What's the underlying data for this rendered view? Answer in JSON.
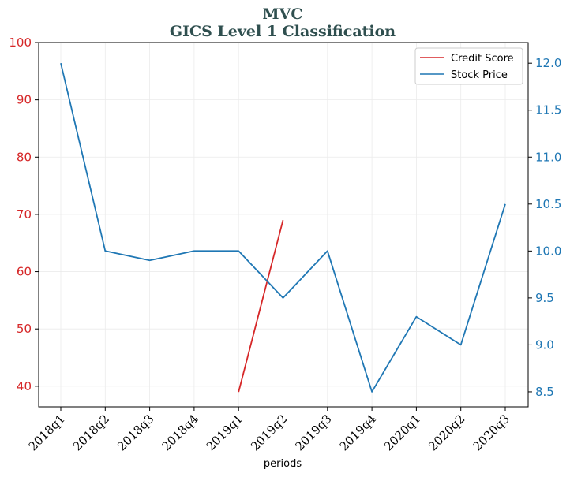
{
  "chart_data": {
    "type": "line",
    "title": "MVC",
    "subtitle": "GICS Level 1 Classification",
    "xlabel": "periods",
    "categories": [
      "2018q1",
      "2018q2",
      "2018q3",
      "2018q4",
      "2019q1",
      "2019q2",
      "2019q3",
      "2019q4",
      "2020q1",
      "2020q2",
      "2020q3"
    ],
    "y_left": {
      "ylim": [
        36.4,
        100
      ],
      "ticks": [
        40,
        50,
        60,
        70,
        80,
        90,
        100
      ],
      "color": "#d62728"
    },
    "y_right": {
      "ylim": [
        8.34,
        12.22
      ],
      "ticks": [
        "8.5",
        "9.0",
        "9.5",
        "10.0",
        "10.5",
        "11.0",
        "11.5",
        "12.0"
      ],
      "color": "#1f77b4"
    },
    "grid": true,
    "legend_position": "top-right",
    "series": [
      {
        "name": "Credit Score",
        "axis": "left",
        "color": "#d62728",
        "values": [
          null,
          null,
          null,
          null,
          39,
          69,
          null,
          null,
          null,
          null,
          null
        ]
      },
      {
        "name": "Stock Price",
        "axis": "right",
        "color": "#1f77b4",
        "values": [
          12.0,
          10.0,
          9.9,
          10.0,
          10.0,
          9.5,
          10.0,
          8.5,
          9.3,
          9.0,
          10.5
        ]
      }
    ]
  }
}
